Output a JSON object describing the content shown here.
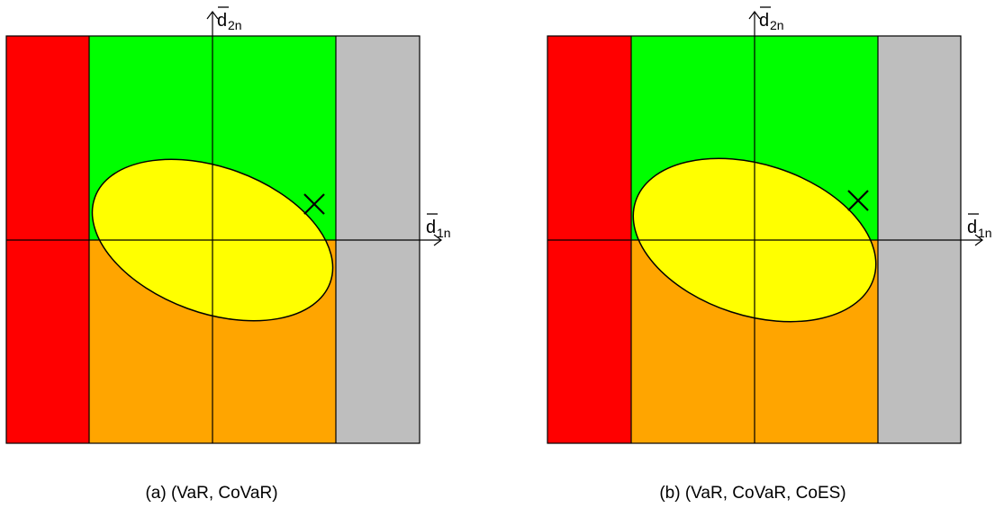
{
  "panels": [
    {
      "caption": "(a) (VaR, CoVaR)",
      "x_axis_label": "d",
      "x_axis_sub": "1n",
      "y_axis_label": "d",
      "y_axis_sub": "2n"
    },
    {
      "caption": "(b) (VaR, CoVaR, CoES)",
      "x_axis_label": "d",
      "x_axis_sub": "1n",
      "y_axis_label": "d",
      "y_axis_sub": "2n"
    }
  ],
  "colors": {
    "left_region": "#ff0000",
    "top_region": "#00ff00",
    "bottom_region": "#ffa500",
    "right_region": "#bebebe",
    "ellipse": "#ffff00",
    "lines": "#000000"
  }
}
